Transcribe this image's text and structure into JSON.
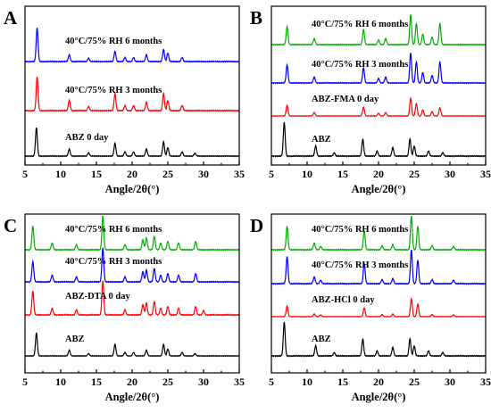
{
  "colors": {
    "ABZ": "#000000",
    "cocrystal_0_day": "#ff0000",
    "3_months": "#0000ff",
    "6_months": "#00b000"
  },
  "chart_data": [
    {
      "panel": "A",
      "type": "line",
      "xlabel": "Angle/2θ(°)",
      "xlim": [
        5,
        35
      ],
      "xticks": [
        5,
        10,
        15,
        20,
        25,
        30,
        35
      ],
      "grid": false,
      "series": [
        {
          "name": "ABZ 0 day",
          "color": "#000000",
          "peaks": [
            [
              6.6,
              1.0
            ],
            [
              11.2,
              0.25
            ],
            [
              13.9,
              0.12
            ],
            [
              17.6,
              0.45
            ],
            [
              19.0,
              0.15
            ],
            [
              20.2,
              0.15
            ],
            [
              22.0,
              0.25
            ],
            [
              24.4,
              0.5
            ],
            [
              25.0,
              0.3
            ],
            [
              27.0,
              0.15
            ],
            [
              28.8,
              0.1
            ]
          ]
        },
        {
          "name": "40°C/75% RH 3 months",
          "color": "#ff0000",
          "peaks": [
            [
              6.7,
              1.0
            ],
            [
              11.2,
              0.3
            ],
            [
              13.9,
              0.12
            ],
            [
              17.6,
              0.5
            ],
            [
              19.0,
              0.15
            ],
            [
              20.2,
              0.15
            ],
            [
              22.0,
              0.25
            ],
            [
              24.4,
              0.5
            ],
            [
              25.0,
              0.3
            ],
            [
              27.0,
              0.15
            ]
          ]
        },
        {
          "name": "40°C/75% RH 6 months",
          "color": "#0000ff",
          "peaks": [
            [
              6.7,
              1.0
            ],
            [
              11.2,
              0.2
            ],
            [
              13.9,
              0.1
            ],
            [
              17.6,
              0.3
            ],
            [
              19.0,
              0.12
            ],
            [
              20.2,
              0.12
            ],
            [
              22.0,
              0.2
            ],
            [
              24.4,
              0.35
            ],
            [
              25.0,
              0.25
            ],
            [
              27.0,
              0.12
            ]
          ]
        }
      ]
    },
    {
      "panel": "B",
      "type": "line",
      "xlabel": "Angle/2θ(°)",
      "xlim": [
        5,
        35
      ],
      "xticks": [
        5,
        10,
        15,
        20,
        25,
        30,
        35
      ],
      "grid": false,
      "series": [
        {
          "name": "ABZ",
          "color": "#000000",
          "peaks": [
            [
              6.8,
              1.0
            ],
            [
              11.2,
              0.3
            ],
            [
              13.8,
              0.1
            ],
            [
              17.8,
              0.5
            ],
            [
              19.8,
              0.15
            ],
            [
              22.0,
              0.25
            ],
            [
              24.4,
              0.5
            ],
            [
              25.0,
              0.3
            ],
            [
              27.0,
              0.15
            ],
            [
              29.0,
              0.1
            ]
          ]
        },
        {
          "name": "ABZ-FMA 0 day",
          "color": "#ff0000",
          "peaks": [
            [
              7.2,
              0.6
            ],
            [
              11.0,
              0.2
            ],
            [
              17.9,
              0.5
            ],
            [
              20.0,
              0.15
            ],
            [
              21.0,
              0.2
            ],
            [
              24.5,
              1.0
            ],
            [
              25.3,
              0.7
            ],
            [
              26.2,
              0.35
            ],
            [
              27.5,
              0.25
            ],
            [
              28.6,
              0.45
            ]
          ]
        },
        {
          "name": "40°C/75% RH 3 months",
          "color": "#0000ff",
          "peaks": [
            [
              7.2,
              0.6
            ],
            [
              11.0,
              0.2
            ],
            [
              17.9,
              0.5
            ],
            [
              20.0,
              0.15
            ],
            [
              21.0,
              0.2
            ],
            [
              24.5,
              1.0
            ],
            [
              25.3,
              0.7
            ],
            [
              26.2,
              0.35
            ],
            [
              27.5,
              0.25
            ],
            [
              28.6,
              0.7
            ]
          ]
        },
        {
          "name": "40°C/75% RH 6 months",
          "color": "#00b000",
          "peaks": [
            [
              7.2,
              0.6
            ],
            [
              11.0,
              0.2
            ],
            [
              17.9,
              0.5
            ],
            [
              20.0,
              0.15
            ],
            [
              21.0,
              0.2
            ],
            [
              24.5,
              1.0
            ],
            [
              25.3,
              0.7
            ],
            [
              26.2,
              0.35
            ],
            [
              27.5,
              0.25
            ],
            [
              28.6,
              0.7
            ]
          ]
        }
      ]
    },
    {
      "panel": "C",
      "type": "line",
      "xlabel": "Angle/2θ(°)",
      "xlim": [
        5,
        35
      ],
      "xticks": [
        5,
        10,
        15,
        20,
        25,
        30,
        35
      ],
      "grid": false,
      "series": [
        {
          "name": "ABZ",
          "color": "#000000",
          "peaks": [
            [
              6.6,
              1.0
            ],
            [
              11.2,
              0.25
            ],
            [
              13.9,
              0.1
            ],
            [
              17.6,
              0.5
            ],
            [
              19.0,
              0.15
            ],
            [
              20.2,
              0.15
            ],
            [
              22.0,
              0.25
            ],
            [
              24.4,
              0.5
            ],
            [
              25.0,
              0.3
            ],
            [
              27.0,
              0.15
            ],
            [
              28.8,
              0.1
            ]
          ]
        },
        {
          "name": "ABZ-DTA 0 day",
          "color": "#ff0000",
          "peaks": [
            [
              6.1,
              0.7
            ],
            [
              8.8,
              0.2
            ],
            [
              12.2,
              0.15
            ],
            [
              15.9,
              1.0
            ],
            [
              19.0,
              0.15
            ],
            [
              21.5,
              0.3
            ],
            [
              22.0,
              0.35
            ],
            [
              23.1,
              0.4
            ],
            [
              24.0,
              0.2
            ],
            [
              25.0,
              0.25
            ],
            [
              26.5,
              0.2
            ],
            [
              28.9,
              0.25
            ],
            [
              30.0,
              0.12
            ]
          ]
        },
        {
          "name": "40°C/75% RH 3 months",
          "color": "#0000ff",
          "peaks": [
            [
              6.1,
              0.6
            ],
            [
              8.8,
              0.2
            ],
            [
              12.2,
              0.15
            ],
            [
              15.9,
              1.0
            ],
            [
              19.0,
              0.15
            ],
            [
              21.5,
              0.3
            ],
            [
              22.0,
              0.35
            ],
            [
              23.1,
              0.4
            ],
            [
              24.0,
              0.2
            ],
            [
              25.0,
              0.25
            ],
            [
              26.5,
              0.2
            ],
            [
              28.9,
              0.25
            ]
          ]
        },
        {
          "name": "40°C/75% RH 6 months",
          "color": "#00b000",
          "peaks": [
            [
              6.1,
              0.7
            ],
            [
              8.8,
              0.2
            ],
            [
              12.2,
              0.15
            ],
            [
              15.9,
              1.0
            ],
            [
              19.0,
              0.15
            ],
            [
              21.5,
              0.3
            ],
            [
              22.0,
              0.35
            ],
            [
              23.1,
              0.4
            ],
            [
              24.0,
              0.2
            ],
            [
              25.0,
              0.25
            ],
            [
              26.5,
              0.2
            ],
            [
              28.9,
              0.25
            ]
          ]
        }
      ]
    },
    {
      "panel": "D",
      "type": "line",
      "xlabel": "Angle/2θ(°)",
      "xlim": [
        5,
        35
      ],
      "xticks": [
        5,
        10,
        15,
        20,
        25,
        30,
        35
      ],
      "grid": false,
      "series": [
        {
          "name": "ABZ",
          "color": "#000000",
          "peaks": [
            [
              6.8,
              1.0
            ],
            [
              11.2,
              0.3
            ],
            [
              13.8,
              0.1
            ],
            [
              17.8,
              0.5
            ],
            [
              19.8,
              0.15
            ],
            [
              22.0,
              0.25
            ],
            [
              24.4,
              0.5
            ],
            [
              25.0,
              0.3
            ],
            [
              27.0,
              0.15
            ],
            [
              29.0,
              0.1
            ]
          ]
        },
        {
          "name": "ABZ-HCl 0 day",
          "color": "#ff0000",
          "peaks": [
            [
              7.2,
              0.6
            ],
            [
              11.0,
              0.15
            ],
            [
              11.9,
              0.1
            ],
            [
              18.0,
              0.5
            ],
            [
              20.5,
              0.12
            ],
            [
              22.0,
              0.15
            ],
            [
              24.6,
              1.0
            ],
            [
              25.5,
              0.7
            ],
            [
              27.5,
              0.12
            ],
            [
              30.5,
              0.1
            ]
          ]
        },
        {
          "name": "40°C/75% RH 3 months",
          "color": "#0000ff",
          "peaks": [
            [
              7.2,
              0.8
            ],
            [
              11.0,
              0.2
            ],
            [
              11.9,
              0.1
            ],
            [
              18.0,
              0.6
            ],
            [
              20.5,
              0.12
            ],
            [
              22.0,
              0.15
            ],
            [
              24.6,
              1.0
            ],
            [
              25.5,
              0.7
            ],
            [
              27.5,
              0.12
            ],
            [
              30.5,
              0.1
            ]
          ]
        },
        {
          "name": "40°C/75% RH 6 months",
          "color": "#00b000",
          "peaks": [
            [
              7.2,
              0.7
            ],
            [
              11.0,
              0.2
            ],
            [
              11.9,
              0.1
            ],
            [
              18.0,
              0.55
            ],
            [
              20.5,
              0.12
            ],
            [
              22.0,
              0.15
            ],
            [
              24.6,
              1.0
            ],
            [
              25.5,
              0.7
            ],
            [
              27.5,
              0.12
            ],
            [
              30.5,
              0.1
            ]
          ]
        }
      ]
    }
  ]
}
